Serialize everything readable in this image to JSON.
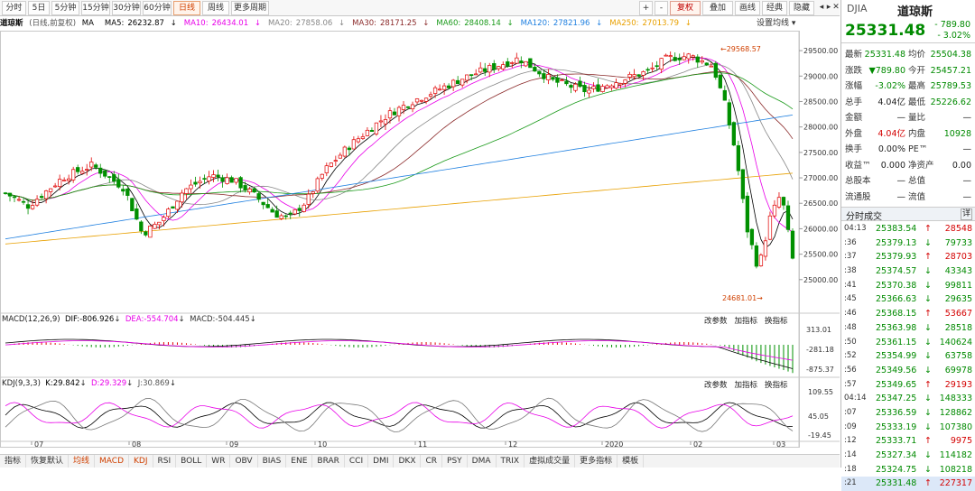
{
  "toolbar": {
    "tabs": [
      "分时",
      "5日",
      "5分钟",
      "15分钟",
      "30分钟",
      "60分钟",
      "日线",
      "周线",
      "更多周期"
    ],
    "active": "日线",
    "right_tools": [
      "+",
      "-",
      "复权",
      "叠加",
      "画线",
      "经典",
      "隐藏"
    ]
  },
  "legend": {
    "name": "道琼斯",
    "mode": "(日线,前复权)",
    "ma_items": [
      {
        "label": "MA",
        "value": "",
        "color": "#000000"
      },
      {
        "label": "MA5:",
        "value": "26232.87",
        "color": "#000000"
      },
      {
        "label": "MA10:",
        "value": "26434.01",
        "color": "#e800e8"
      },
      {
        "label": "MA20:",
        "value": "27858.06",
        "color": "#888888"
      },
      {
        "label": "MA30:",
        "value": "28171.25",
        "color": "#8b2a2a"
      },
      {
        "label": "MA60:",
        "value": "28408.14",
        "color": "#1a9a1a"
      },
      {
        "label": "MA120:",
        "value": "27821.96",
        "color": "#2080e0"
      },
      {
        "label": "MA250:",
        "value": "27013.79",
        "color": "#e8a000"
      }
    ],
    "settings": "设置均线"
  },
  "main_chart": {
    "y_ticks": [
      "29500.00",
      "29000.00",
      "28500.00",
      "28000.00",
      "27500.00",
      "27000.00",
      "26500.00",
      "26000.00",
      "25500.00",
      "25000.00"
    ],
    "high_label": "29568.57",
    "low_label": "24681.01"
  },
  "macd": {
    "title": "MACD(12,26,9)",
    "dif": "DIF:-806.926",
    "dea": "DEA:-554.704",
    "macd": "MACD:-504.445",
    "y_ticks": [
      "313.01",
      "-281.18",
      "-875.37"
    ]
  },
  "kdj": {
    "title": "KDJ(9,3,3)",
    "k": "K:29.842",
    "d": "D:29.329",
    "j": "J:30.869",
    "y_ticks": [
      "109.55",
      "45.05",
      "-19.45"
    ]
  },
  "panel_buttons": [
    "改参数",
    "加指标",
    "换指标"
  ],
  "x_ticks": [
    "07",
    "08",
    "09",
    "10",
    "11",
    "12",
    "2020",
    "02",
    "03"
  ],
  "bottom_tabs": [
    "指标",
    "恢复默认",
    "均线",
    "MACD",
    "KDJ",
    "RSI",
    "BOLL",
    "WR",
    "OBV",
    "BIAS",
    "ENE",
    "BRAR",
    "CCI",
    "DMI",
    "DKX",
    "CR",
    "PSY",
    "DMA",
    "TRIX",
    "虚拟成交量",
    "更多指标",
    "模板"
  ],
  "bottom_orange": [
    "均线",
    "MACD",
    "KDJ"
  ],
  "quote": {
    "code": "DJIA",
    "name": "道琼斯",
    "price": "25331.48",
    "change": "- 789.80",
    "change_pct": "- 3.02%",
    "rows": [
      [
        {
          "l": "最新",
          "v": "25331.48",
          "c": "green"
        },
        {
          "l": "均价",
          "v": "25504.38",
          "c": "green"
        }
      ],
      [
        {
          "l": "涨跌",
          "v": "▼789.80",
          "c": "green"
        },
        {
          "l": "今开",
          "v": "25457.21",
          "c": "green"
        }
      ],
      [
        {
          "l": "涨幅",
          "v": "-3.02%",
          "c": "green"
        },
        {
          "l": "最高",
          "v": "25789.53",
          "c": "green"
        }
      ],
      [
        {
          "l": "总手",
          "v": "4.04亿",
          "c": ""
        },
        {
          "l": "最低",
          "v": "25226.62",
          "c": "green"
        }
      ],
      [
        {
          "l": "金额",
          "v": "—",
          "c": ""
        },
        {
          "l": "量比",
          "v": "—",
          "c": ""
        }
      ],
      [
        {
          "l": "外盘",
          "v": "4.04亿",
          "c": "red"
        },
        {
          "l": "内盘",
          "v": "10928",
          "c": "green"
        }
      ],
      [
        {
          "l": "换手",
          "v": "0.00%",
          "c": ""
        },
        {
          "l": "PE™",
          "v": "—",
          "c": ""
        }
      ],
      [
        {
          "l": "收益™",
          "v": "0.000",
          "c": ""
        },
        {
          "l": "净资产",
          "v": "0.00",
          "c": ""
        }
      ],
      [
        {
          "l": "总股本",
          "v": "—",
          "c": ""
        },
        {
          "l": "总值",
          "v": "—",
          "c": ""
        }
      ],
      [
        {
          "l": "流通股",
          "v": "—",
          "c": ""
        },
        {
          "l": "流值",
          "v": "—",
          "c": ""
        }
      ]
    ],
    "trades_title": "分时成交",
    "trades_detail": "详",
    "trades": [
      {
        "t": "04:13",
        "p": "25383.54",
        "d": "↑",
        "v": "28548",
        "c": "red"
      },
      {
        "t": ":36",
        "p": "25379.13",
        "d": "↓",
        "v": "79733",
        "c": "green"
      },
      {
        "t": ":37",
        "p": "25379.93",
        "d": "↑",
        "v": "28703",
        "c": "red"
      },
      {
        "t": ":38",
        "p": "25374.57",
        "d": "↓",
        "v": "43343",
        "c": "green"
      },
      {
        "t": ":41",
        "p": "25370.38",
        "d": "↓",
        "v": "99811",
        "c": "green"
      },
      {
        "t": ":45",
        "p": "25366.63",
        "d": "↓",
        "v": "29635",
        "c": "green"
      },
      {
        "t": ":46",
        "p": "25368.15",
        "d": "↑",
        "v": "53667",
        "c": "red"
      },
      {
        "t": ":48",
        "p": "25363.98",
        "d": "↓",
        "v": "28518",
        "c": "green"
      },
      {
        "t": ":50",
        "p": "25361.15",
        "d": "↓",
        "v": "140624",
        "c": "green"
      },
      {
        "t": ":52",
        "p": "25354.99",
        "d": "↓",
        "v": "63758",
        "c": "green"
      },
      {
        "t": ":56",
        "p": "25349.56",
        "d": "↓",
        "v": "69978",
        "c": "green"
      },
      {
        "t": ":57",
        "p": "25349.65",
        "d": "↑",
        "v": "29193",
        "c": "red"
      },
      {
        "t": "04:14",
        "p": "25347.25",
        "d": "↓",
        "v": "148333",
        "c": "green"
      },
      {
        "t": ":07",
        "p": "25336.59",
        "d": "↓",
        "v": "128862",
        "c": "green"
      },
      {
        "t": ":09",
        "p": "25333.19",
        "d": "↓",
        "v": "107380",
        "c": "green"
      },
      {
        "t": ":12",
        "p": "25333.71",
        "d": "↑",
        "v": "9975",
        "c": "red"
      },
      {
        "t": ":14",
        "p": "25327.34",
        "d": "↓",
        "v": "114182",
        "c": "green"
      },
      {
        "t": ":18",
        "p": "25324.75",
        "d": "↓",
        "v": "108218",
        "c": "green"
      },
      {
        "t": ":21",
        "p": "25331.48",
        "d": "↑",
        "v": "227317",
        "c": "red"
      }
    ]
  },
  "colors": {
    "up": "#e00000",
    "down": "#009000",
    "accent": "#d04000"
  }
}
